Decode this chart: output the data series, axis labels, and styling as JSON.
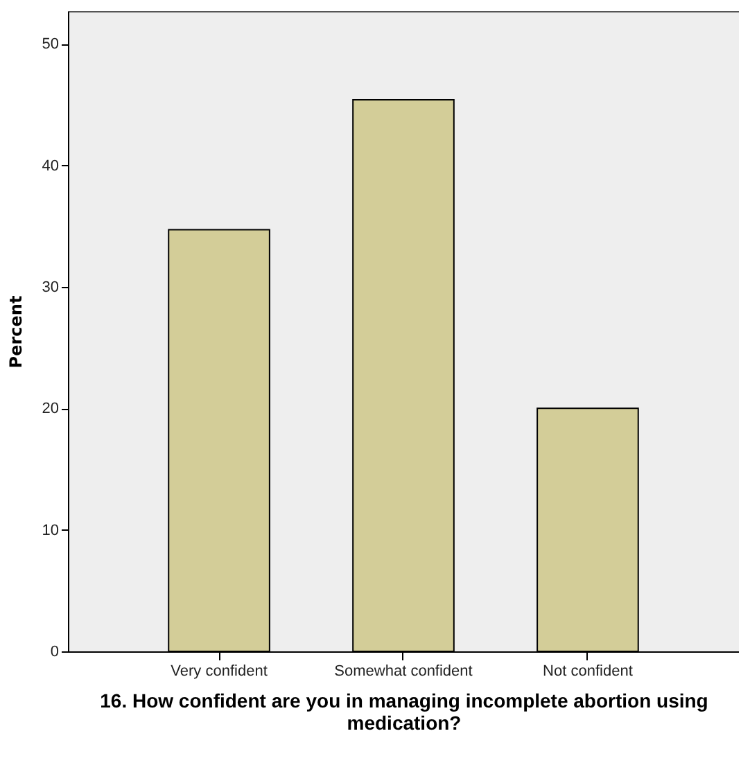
{
  "chart_data": {
    "type": "bar",
    "xlabel": "16.    How confident are you in managing incomplete abortion using medication?",
    "ylabel": "Percent",
    "categories": [
      "Very confident",
      "Somewhat confident",
      "Not confident"
    ],
    "values": [
      34.7,
      45.4,
      20.0
    ],
    "color": "#d3cd98",
    "ylim": [
      0,
      52.7
    ],
    "yticks": [
      0,
      10,
      20,
      30,
      40,
      50
    ],
    "grid": false
  }
}
